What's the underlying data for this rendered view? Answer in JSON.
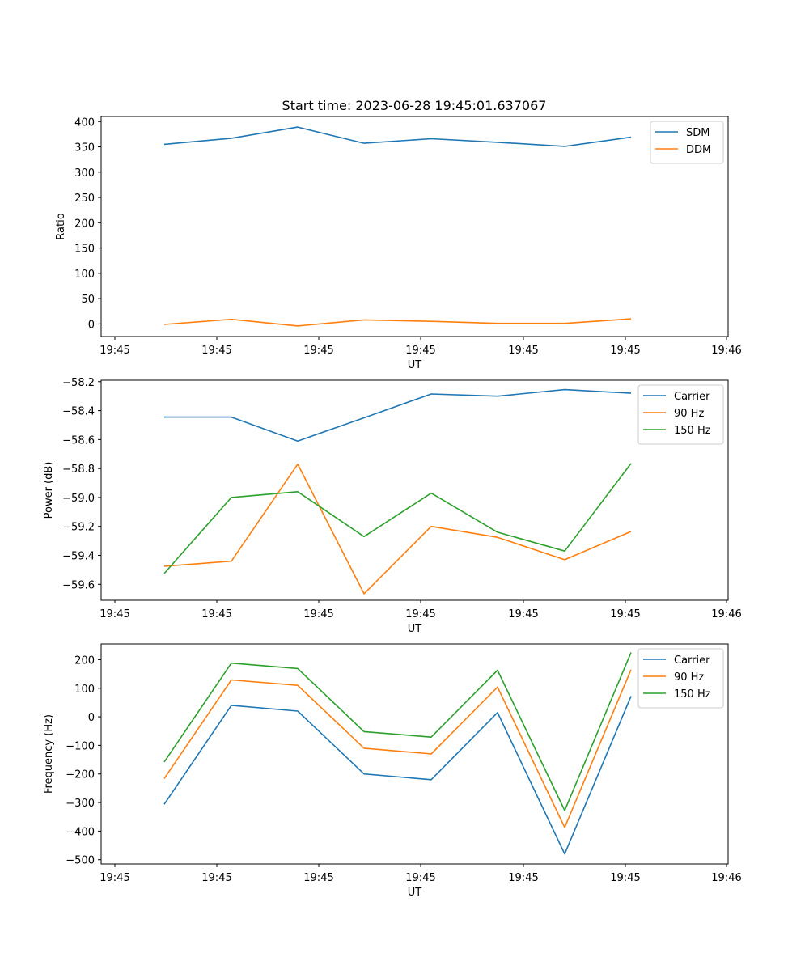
{
  "title": "Start time: 2023-06-28 19:45:01.637067",
  "chart_data": [
    {
      "type": "line",
      "xlabel": "UT",
      "ylabel": "Ratio",
      "x_tick_labels": [
        "19:45",
        "19:45",
        "19:45",
        "19:45",
        "19:45",
        "19:45",
        "19:46"
      ],
      "y_ticks": [
        0,
        50,
        100,
        150,
        200,
        250,
        300,
        350,
        400
      ],
      "ylim": [
        -25,
        410
      ],
      "legend": "top-right",
      "series": [
        {
          "name": "SDM",
          "color": "#1f77b4",
          "values": [
            355,
            367,
            389,
            357,
            366,
            359,
            351,
            369
          ]
        },
        {
          "name": "DDM",
          "color": "#ff7f0e",
          "values": [
            -1,
            9,
            -4,
            8,
            5,
            1,
            1,
            10
          ]
        }
      ]
    },
    {
      "type": "line",
      "xlabel": "UT",
      "ylabel": "Power (dB)",
      "x_tick_labels": [
        "19:45",
        "19:45",
        "19:45",
        "19:45",
        "19:45",
        "19:45",
        "19:46"
      ],
      "y_ticks": [
        -59.6,
        -59.4,
        -59.2,
        -59.0,
        -58.8,
        -58.6,
        -58.4,
        -58.2
      ],
      "ylim": [
        -59.71,
        -58.19
      ],
      "legend": "top-right",
      "series": [
        {
          "name": "Carrier",
          "color": "#1f77b4",
          "values": [
            -58.445,
            -58.445,
            -58.61,
            -58.45,
            -58.285,
            -58.3,
            -58.255,
            -58.28
          ]
        },
        {
          "name": "90 Hz",
          "color": "#ff7f0e",
          "values": [
            -59.475,
            -59.44,
            -58.77,
            -59.665,
            -59.2,
            -59.275,
            -59.43,
            -59.235
          ]
        },
        {
          "name": "150 Hz",
          "color": "#2ca02c",
          "values": [
            -59.525,
            -59.0,
            -58.96,
            -59.27,
            -58.97,
            -59.24,
            -59.37,
            -58.765
          ]
        }
      ]
    },
    {
      "type": "line",
      "xlabel": "UT",
      "ylabel": "Frequency (Hz)",
      "x_tick_labels": [
        "19:45",
        "19:45",
        "19:45",
        "19:45",
        "19:45",
        "19:45",
        "19:46"
      ],
      "y_ticks": [
        -500,
        -400,
        -300,
        -200,
        -100,
        0,
        100,
        200
      ],
      "ylim": [
        -515,
        255
      ],
      "legend": "top-right",
      "series": [
        {
          "name": "Carrier",
          "color": "#1f77b4",
          "values": [
            -306,
            40,
            20,
            -200,
            -220,
            15,
            -480,
            72
          ]
        },
        {
          "name": "90 Hz",
          "color": "#ff7f0e",
          "values": [
            -216,
            129,
            110,
            -110,
            -130,
            104,
            -387,
            165
          ]
        },
        {
          "name": "150 Hz",
          "color": "#2ca02c",
          "values": [
            -158,
            188,
            169,
            -52,
            -71,
            163,
            -328,
            225
          ]
        }
      ]
    }
  ]
}
